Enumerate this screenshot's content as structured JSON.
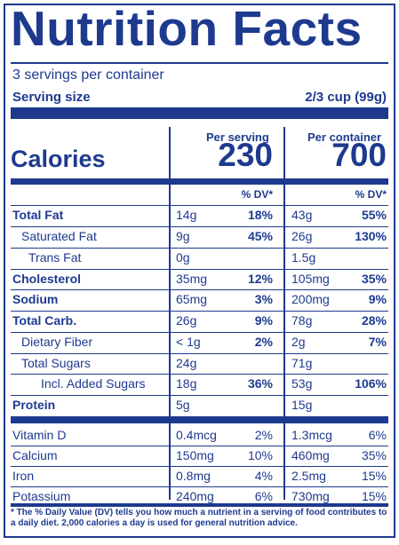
{
  "title": "Nutrition Facts",
  "servings_per_container": "3 servings per container",
  "serving_size_label": "Serving size",
  "serving_size_value": "2/3 cup (99g)",
  "headers": {
    "per_serving": "Per serving",
    "per_container": "Per container"
  },
  "calories": {
    "label": "Calories",
    "per_serving": "230",
    "per_container": "700"
  },
  "dv_header": "% DV*",
  "nutrients": [
    {
      "name": "Total Fat",
      "bold": true,
      "indent": 0,
      "s_amt": "14g",
      "s_dv": "18%",
      "c_amt": "43g",
      "c_dv": "55%"
    },
    {
      "name": "Saturated Fat",
      "bold": false,
      "indent": 1,
      "s_amt": "9g",
      "s_dv": "45%",
      "c_amt": "26g",
      "c_dv": "130%"
    },
    {
      "name": "Trans Fat",
      "bold": false,
      "indent": 2,
      "s_amt": "0g",
      "s_dv": "",
      "c_amt": "1.5g",
      "c_dv": ""
    },
    {
      "name": "Cholesterol",
      "bold": true,
      "indent": 0,
      "s_amt": "35mg",
      "s_dv": "12%",
      "c_amt": "105mg",
      "c_dv": "35%"
    },
    {
      "name": "Sodium",
      "bold": true,
      "indent": 0,
      "s_amt": "65mg",
      "s_dv": "3%",
      "c_amt": "200mg",
      "c_dv": "9%"
    },
    {
      "name": "Total Carb.",
      "bold": true,
      "indent": 0,
      "s_amt": "26g",
      "s_dv": "9%",
      "c_amt": "78g",
      "c_dv": "28%"
    },
    {
      "name": "Dietary Fiber",
      "bold": false,
      "indent": 1,
      "s_amt": "< 1g",
      "s_dv": "2%",
      "c_amt": "2g",
      "c_dv": "7%"
    },
    {
      "name": "Total Sugars",
      "bold": false,
      "indent": 1,
      "s_amt": "24g",
      "s_dv": "",
      "c_amt": "71g",
      "c_dv": ""
    },
    {
      "name": "Incl. Added Sugars",
      "bold": false,
      "indent": 3,
      "s_amt": "18g",
      "s_dv": "36%",
      "c_amt": "53g",
      "c_dv": "106%"
    },
    {
      "name": "Protein",
      "bold": true,
      "indent": 0,
      "s_amt": "5g",
      "s_dv": "",
      "c_amt": "15g",
      "c_dv": ""
    }
  ],
  "vitamins": [
    {
      "name": "Vitamin D",
      "s_amt": "0.4mcg",
      "s_dv": "2%",
      "c_amt": "1.3mcg",
      "c_dv": "6%"
    },
    {
      "name": "Calcium",
      "s_amt": "150mg",
      "s_dv": "10%",
      "c_amt": "460mg",
      "c_dv": "35%"
    },
    {
      "name": "Iron",
      "s_amt": "0.8mg",
      "s_dv": "4%",
      "c_amt": "2.5mg",
      "c_dv": "15%"
    },
    {
      "name": "Potassium",
      "s_amt": "240mg",
      "s_dv": "6%",
      "c_amt": "730mg",
      "c_dv": "15%"
    }
  ],
  "footnote": "* The % Daily Value (DV) tells you how much a nutrient in a serving of food contributes to a daily diet. 2,000 calories a day is used for general nutrition advice.",
  "colors": {
    "ink": "#1e3a8f",
    "background": "#ffffff"
  }
}
